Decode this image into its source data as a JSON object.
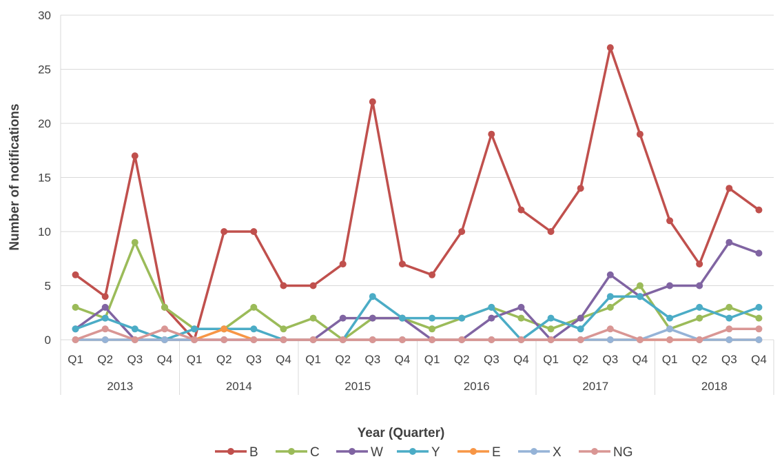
{
  "chart_data": {
    "type": "line",
    "title": "",
    "xlabel": "Year (Quarter)",
    "ylabel": "Number of notifications",
    "ylim": [
      0,
      30
    ],
    "yticks": [
      0,
      5,
      10,
      15,
      20,
      25,
      30
    ],
    "grid": true,
    "legend_position": "bottom",
    "years": [
      "2013",
      "2014",
      "2015",
      "2016",
      "2017",
      "2018"
    ],
    "quarters": [
      "Q1",
      "Q2",
      "Q3",
      "Q4"
    ],
    "categories": [
      "Q1",
      "Q2",
      "Q3",
      "Q4",
      "Q1",
      "Q2",
      "Q3",
      "Q4",
      "Q1",
      "Q2",
      "Q3",
      "Q4",
      "Q1",
      "Q2",
      "Q3",
      "Q4",
      "Q1",
      "Q2",
      "Q3",
      "Q4",
      "Q1",
      "Q2",
      "Q3",
      "Q4"
    ],
    "series": [
      {
        "name": "B",
        "color": "#C0504D",
        "values": [
          6,
          4,
          17,
          3,
          0,
          10,
          10,
          5,
          5,
          7,
          22,
          7,
          6,
          10,
          19,
          12,
          10,
          14,
          27,
          19,
          11,
          7,
          14,
          12
        ]
      },
      {
        "name": "C",
        "color": "#9BBB59",
        "values": [
          3,
          2,
          9,
          3,
          1,
          1,
          3,
          1,
          2,
          0,
          2,
          2,
          1,
          2,
          3,
          2,
          1,
          2,
          3,
          5,
          1,
          2,
          3,
          2
        ]
      },
      {
        "name": "W",
        "color": "#8064A2",
        "values": [
          1,
          3,
          0,
          0,
          0,
          0,
          0,
          0,
          0,
          2,
          2,
          2,
          0,
          0,
          2,
          3,
          0,
          2,
          6,
          4,
          5,
          5,
          9,
          8
        ]
      },
      {
        "name": "Y",
        "color": "#4BACC6",
        "values": [
          1,
          2,
          1,
          0,
          1,
          1,
          1,
          0,
          0,
          0,
          4,
          2,
          2,
          2,
          3,
          0,
          2,
          1,
          4,
          4,
          2,
          3,
          2,
          3
        ]
      },
      {
        "name": "E",
        "color": "#F79646",
        "values": [
          0,
          0,
          0,
          0,
          0,
          1,
          0,
          0,
          0,
          0,
          0,
          0,
          0,
          0,
          0,
          0,
          0,
          0,
          0,
          0,
          0,
          0,
          0,
          0
        ]
      },
      {
        "name": "X",
        "color": "#95B3D7",
        "values": [
          0,
          0,
          0,
          0,
          0,
          0,
          0,
          0,
          0,
          0,
          0,
          0,
          0,
          0,
          0,
          0,
          0,
          0,
          0,
          0,
          1,
          0,
          0,
          0
        ]
      },
      {
        "name": "NG",
        "color": "#D99694",
        "values": [
          0,
          1,
          0,
          1,
          0,
          0,
          0,
          0,
          0,
          0,
          0,
          0,
          0,
          0,
          0,
          0,
          0,
          0,
          1,
          0,
          0,
          0,
          1,
          1
        ]
      }
    ]
  }
}
